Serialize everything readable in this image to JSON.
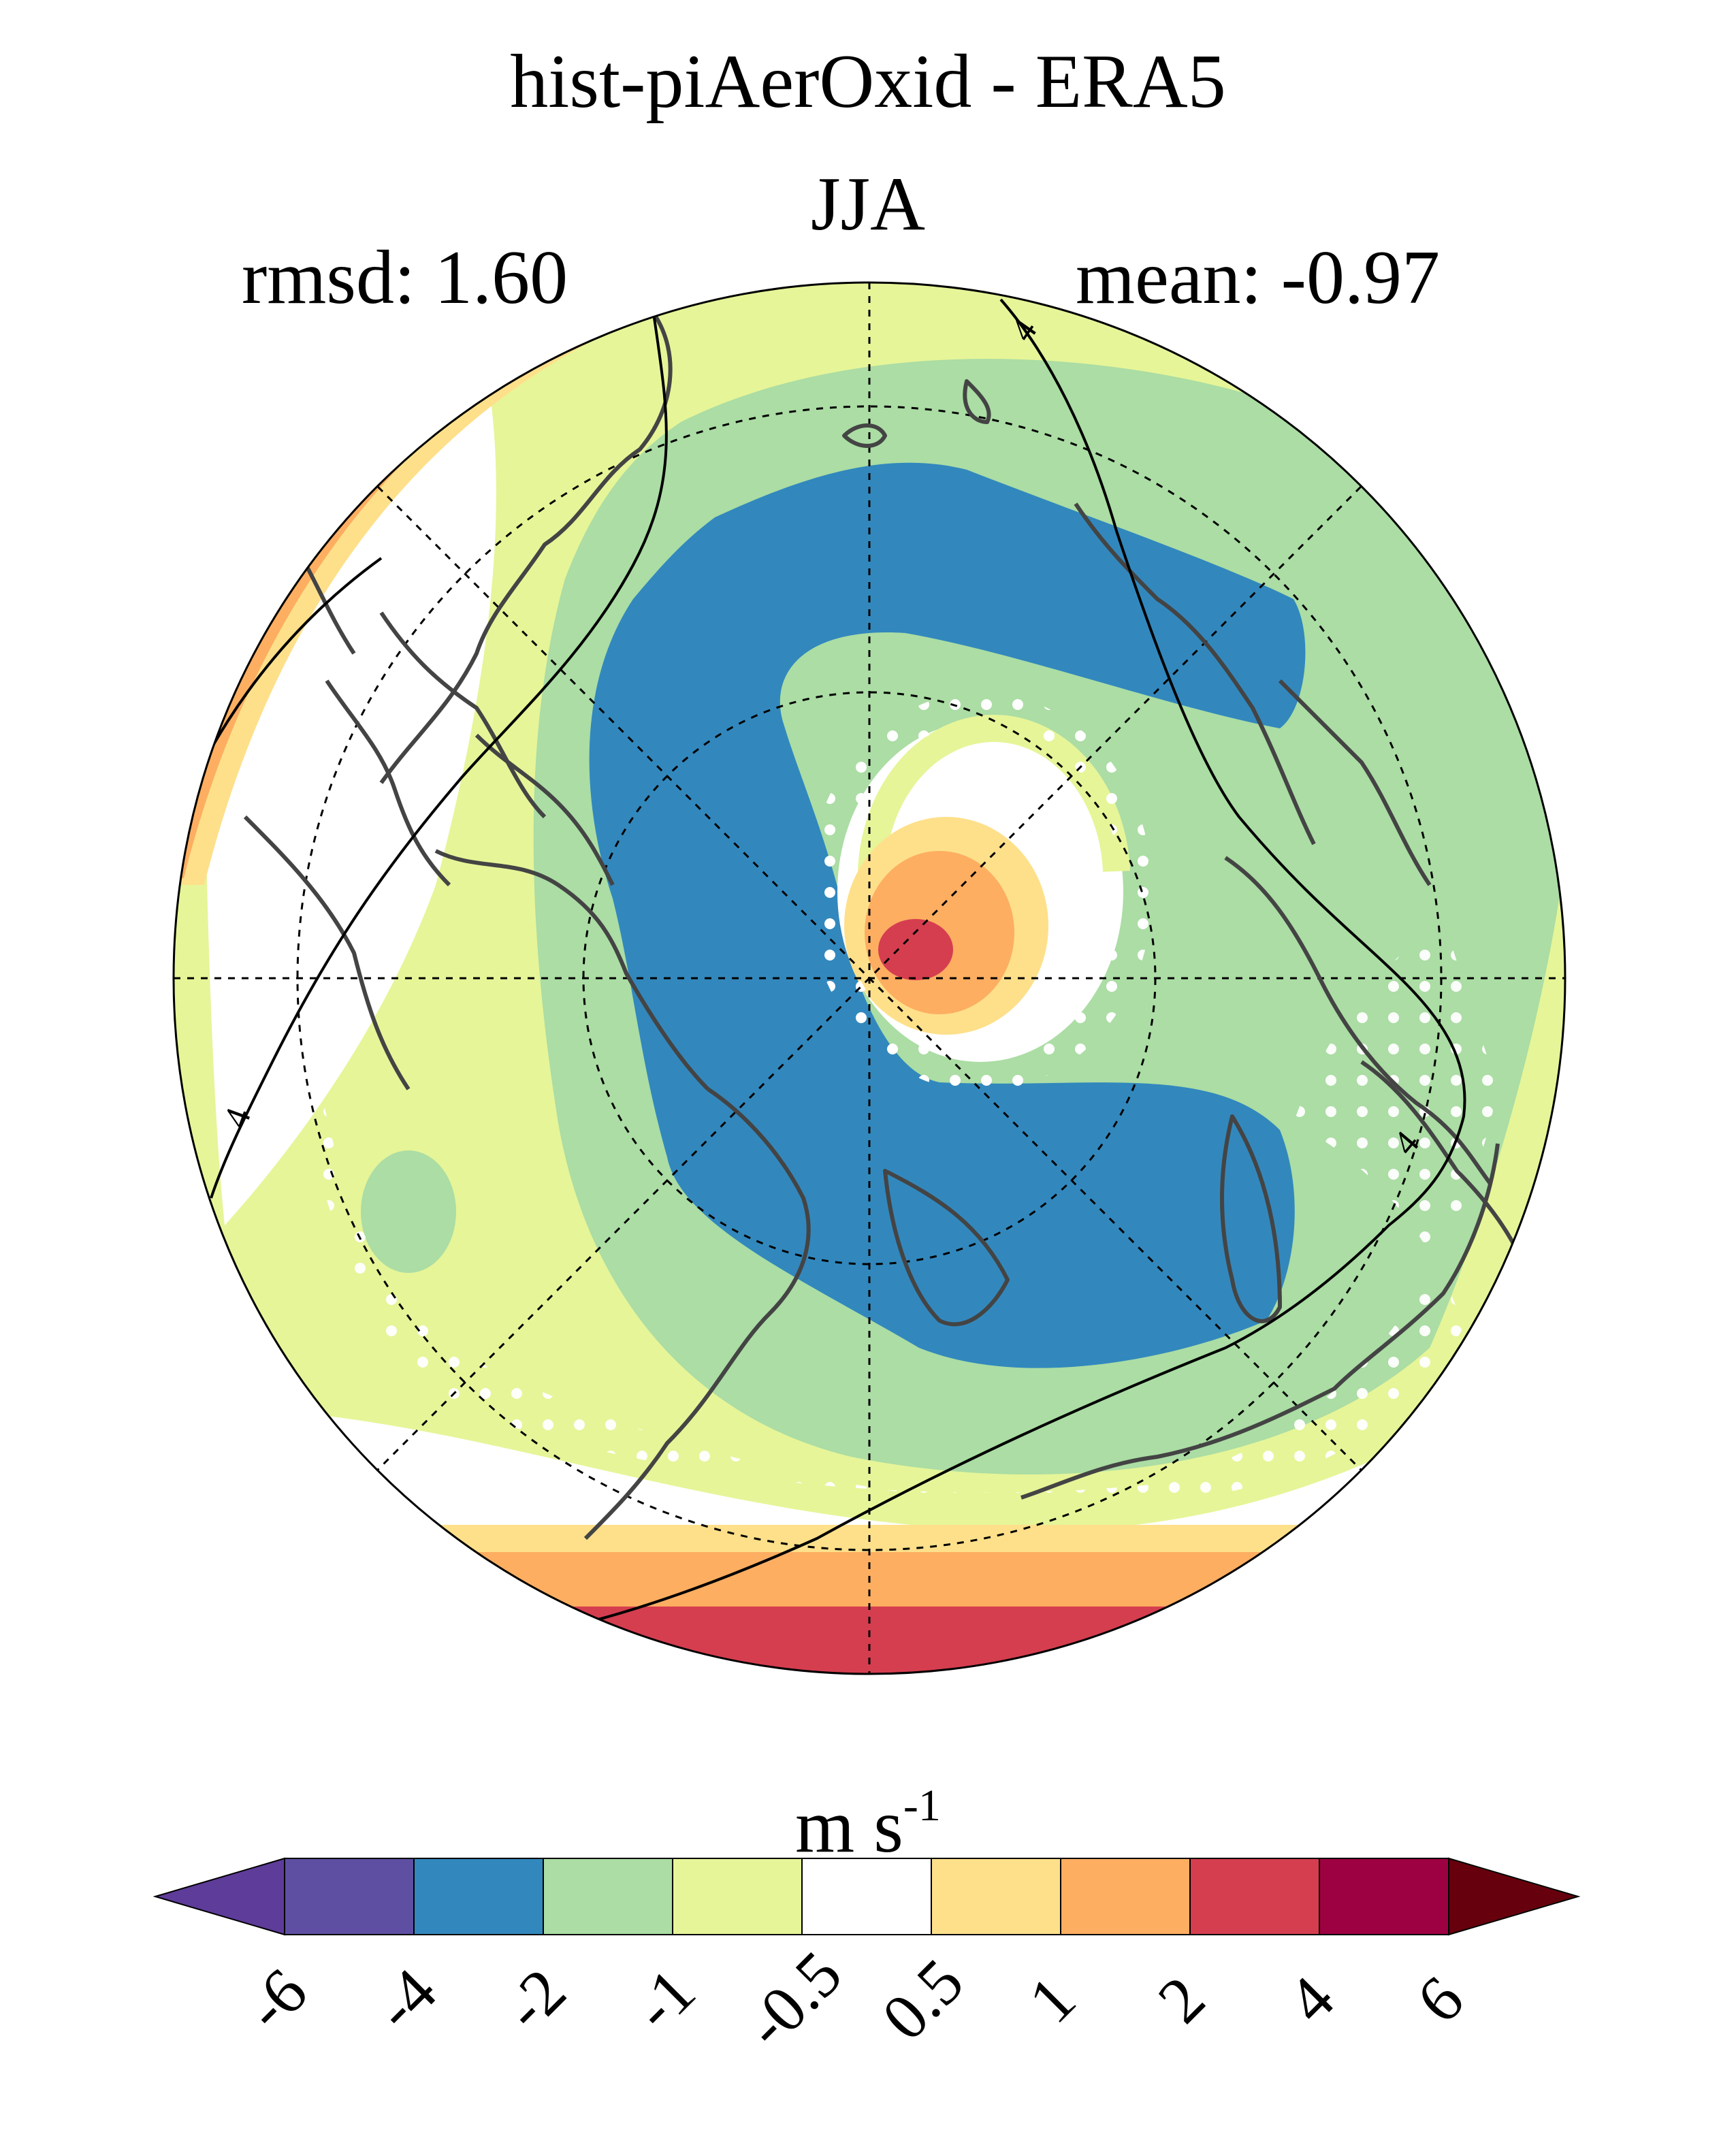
{
  "title": "hist-piAerOxid - ERA5",
  "subtitle": "JJA",
  "stats": {
    "rmsd": "rmsd: 1.60",
    "mean": "mean: -0.97"
  },
  "units": {
    "base": "m s",
    "exponent": "-1"
  },
  "colorbar": {
    "levels": [
      "-6",
      "-4",
      "-2",
      "-1",
      "-0.5",
      "0.5",
      "1",
      "2",
      "4",
      "6"
    ],
    "colors": [
      "#5e3c99",
      "#5e4fa2",
      "#3288bd",
      "#abdda4",
      "#e6f598",
      "#ffffff",
      "#fee08b",
      "#fdae61",
      "#d53e4f",
      "#9e0142",
      "#67000d"
    ]
  },
  "contour_labels": [
    "4",
    "4",
    "4"
  ],
  "palette": {
    "strong_neg": "#3288bd",
    "mid_neg": "#abdda4",
    "weak_neg": "#e6f598",
    "neutral": "#ffffff",
    "weak_pos": "#fee08b",
    "mid_pos": "#fdae61",
    "strong_pos": "#d53e4f",
    "coast": "#444444",
    "stipple": "#ffffff"
  }
}
